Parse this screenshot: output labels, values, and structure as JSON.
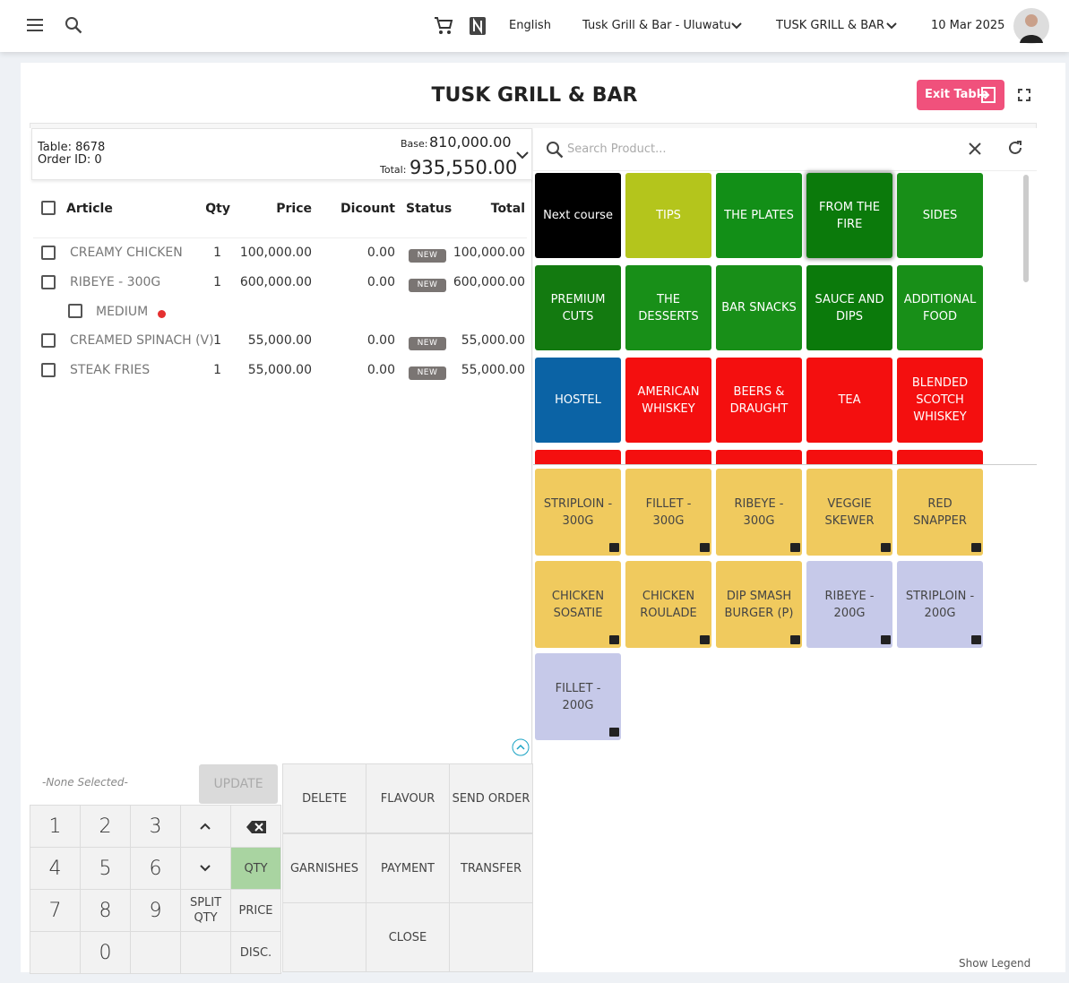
{
  "header": {
    "language": "English",
    "venue": "Tusk Grill & Bar - Uluwatu",
    "outlet": "TUSK GRILL & BAR",
    "date": "10 Mar 2025"
  },
  "title": "TUSK GRILL & BAR",
  "exit_button": "Exit Table",
  "order": {
    "table_label": "Table: 8678",
    "order_label": "Order ID: 0",
    "base_label": "Base:",
    "base": "810,000.00",
    "total_label": "Total:",
    "total": "935,550.00"
  },
  "table": {
    "headers": [
      "Article",
      "Qty",
      "Price",
      "Dicount",
      "Status",
      "Total"
    ],
    "rows": [
      [
        "CREAMY CHICKEN",
        "1",
        "100,000.00",
        "0.00",
        "NEW",
        "100,000.00"
      ],
      [
        "RIBEYE - 300G",
        "1",
        "600,000.00",
        "0.00",
        "NEW",
        "600,000.00"
      ],
      [
        "CREAMED SPINACH (V)",
        "1",
        "55,000.00",
        "0.00",
        "NEW",
        "55,000.00"
      ],
      [
        "STEAK FRIES",
        "1",
        "55,000.00",
        "0.00",
        "NEW",
        "55,000.00"
      ]
    ],
    "modifier": "MEDIUM"
  },
  "search_placeholder": "Search Product...",
  "categories": [
    {
      "label": "Next course",
      "color": "#000000"
    },
    {
      "label": "TIPS",
      "color": "#b4c51c"
    },
    {
      "label": "THE PLATES",
      "color": "#128f17"
    },
    {
      "label": "FROM THE FIRE",
      "color": "#0b7a0b"
    },
    {
      "label": "SIDES",
      "color": "#188f18"
    },
    {
      "label": "PREMIUM CUTS",
      "color": "#137a10"
    },
    {
      "label": "THE DESSERTS",
      "color": "#188f18"
    },
    {
      "label": "BAR SNACKS",
      "color": "#188f18"
    },
    {
      "label": "SAUCE AND DIPS",
      "color": "#0b7a0b"
    },
    {
      "label": "ADDITIONAL FOOD",
      "color": "#188f18"
    },
    {
      "label": "HOSTEL",
      "color": "#0b63a5"
    },
    {
      "label": "AMERICAN WHISKEY",
      "color": "#f40f0f"
    },
    {
      "label": "BEERS & DRAUGHT",
      "color": "#f40f0f"
    },
    {
      "label": "TEA",
      "color": "#f40f0f"
    },
    {
      "label": "BLENDED SCOTCH WHISKEY",
      "color": "#f40f0f"
    }
  ],
  "products": [
    {
      "label": "STRIPLOIN - 300G",
      "color": "#f0ca5e"
    },
    {
      "label": "FILLET - 300G",
      "color": "#f0ca5e"
    },
    {
      "label": "RIBEYE - 300G",
      "color": "#f0ca5e"
    },
    {
      "label": "VEGGIE SKEWER",
      "color": "#f0ca5e"
    },
    {
      "label": "RED SNAPPER",
      "color": "#f0ca5e"
    },
    {
      "label": "CHICKEN SOSATIE",
      "color": "#f0ca5e"
    },
    {
      "label": "CHICKEN ROULADE",
      "color": "#f0ca5e"
    },
    {
      "label": "DIP SMASH BURGER (P)",
      "color": "#f0ca5e"
    },
    {
      "label": "RIBEYE - 200G",
      "color": "#c6c9e9"
    },
    {
      "label": "STRIPLOIN - 200G",
      "color": "#c6c9e9"
    },
    {
      "label": "FILLET - 200G",
      "color": "#c6c9e9"
    }
  ],
  "keypad": {
    "selection_placeholder": "-None Selected-",
    "update": "UPDATE",
    "digits": [
      "1",
      "2",
      "3",
      "4",
      "5",
      "6",
      "7",
      "8",
      "9",
      "0"
    ],
    "functions": [
      "QTY",
      "SPLIT QTY",
      "PRICE",
      "DISC."
    ]
  },
  "actions": [
    "DELETE",
    "FLAVOUR",
    "SEND ORDER",
    "GARNISHES",
    "PAYMENT",
    "TRANSFER",
    "CLOSE"
  ],
  "show_legend": "Show Legend"
}
